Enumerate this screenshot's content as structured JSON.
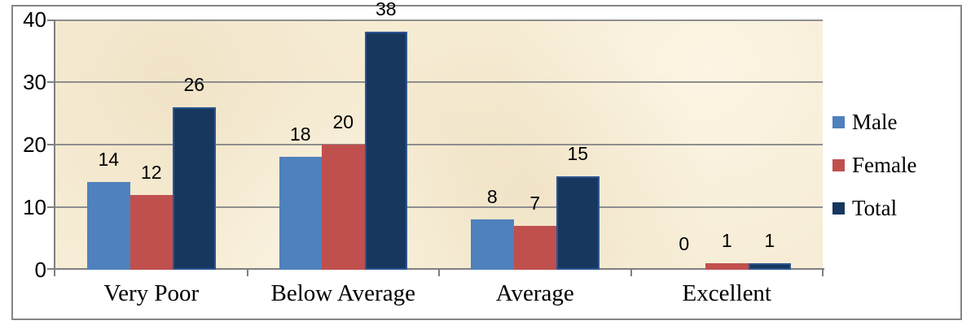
{
  "chart_data": {
    "type": "bar",
    "title": "",
    "xlabel": "",
    "ylabel": "",
    "categories": [
      "Very Poor",
      "Below Average",
      "Average",
      "Excellent"
    ],
    "series": [
      {
        "name": "Male",
        "color": "#4F81BD",
        "values": [
          14,
          18,
          8,
          0
        ]
      },
      {
        "name": "Female",
        "color": "#C0504D",
        "values": [
          12,
          20,
          7,
          1
        ]
      },
      {
        "name": "Total",
        "color": "#17375E",
        "values": [
          26,
          38,
          15,
          1
        ]
      }
    ],
    "ylim": [
      0,
      40
    ],
    "yticks": [
      0,
      10,
      20,
      30,
      40
    ],
    "grid": true,
    "data_labels": "outside-end",
    "legend_position": "right"
  },
  "colors": {
    "plot_background": "#F7EDD6",
    "gridline": "#8E8E8E",
    "axis": "#7F7F7F",
    "frame_border": "#858585",
    "total_bar_border": "#2D5491",
    "text": "#000000"
  }
}
